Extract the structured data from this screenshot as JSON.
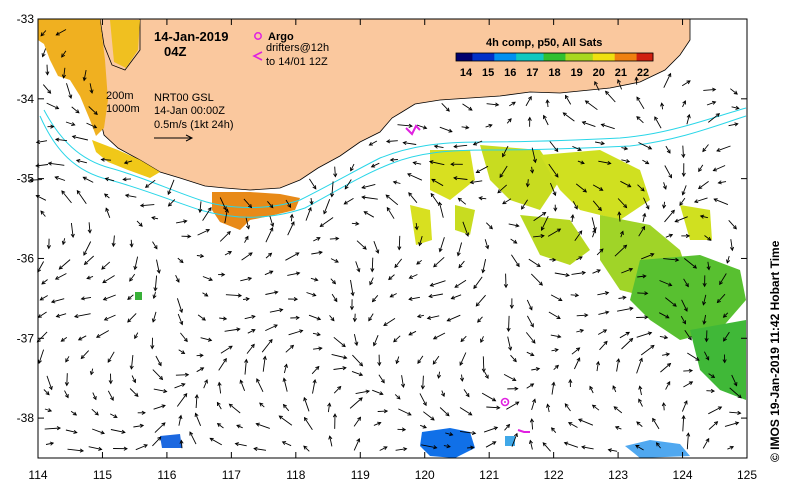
{
  "map": {
    "date_label": "14-Jan-2019",
    "time_label": "04Z",
    "argo_label": "Argo",
    "drifters_label": "drifters@12h",
    "drifters_to_label": "to 14/01 12Z",
    "isobath_200": "200m",
    "isobath_1000": "1000m",
    "product_label": "NRT00 GSL",
    "product_time": "14-Jan 00:00Z",
    "speed_scale_label": "0.5m/s (1kt 24h)",
    "colorbar_title": "4h comp, p50, All Sats",
    "colorbar_ticks": [
      "14",
      "15",
      "16",
      "17",
      "18",
      "19",
      "20",
      "21",
      "22"
    ],
    "credit": "© IMOS 19-Jan-2019 11:42 Hobart Time",
    "lon_ticks": [
      "114",
      "115",
      "116",
      "117",
      "118",
      "119",
      "120",
      "121",
      "122",
      "123",
      "124",
      "125"
    ],
    "lat_ticks": [
      "-33",
      "-34",
      "-35",
      "-36",
      "-37",
      "-38"
    ],
    "lon_range": [
      114,
      125
    ],
    "lat_range": [
      -33,
      -38.5
    ],
    "colors": {
      "land": "#fac89e",
      "isobath": "#2ad6e8",
      "argo": "#e020e0",
      "colorbar": [
        "#00006e",
        "#0030c8",
        "#0090f0",
        "#10c8c0",
        "#30c030",
        "#a8d820",
        "#f0e010",
        "#f08010",
        "#d02010"
      ]
    }
  }
}
